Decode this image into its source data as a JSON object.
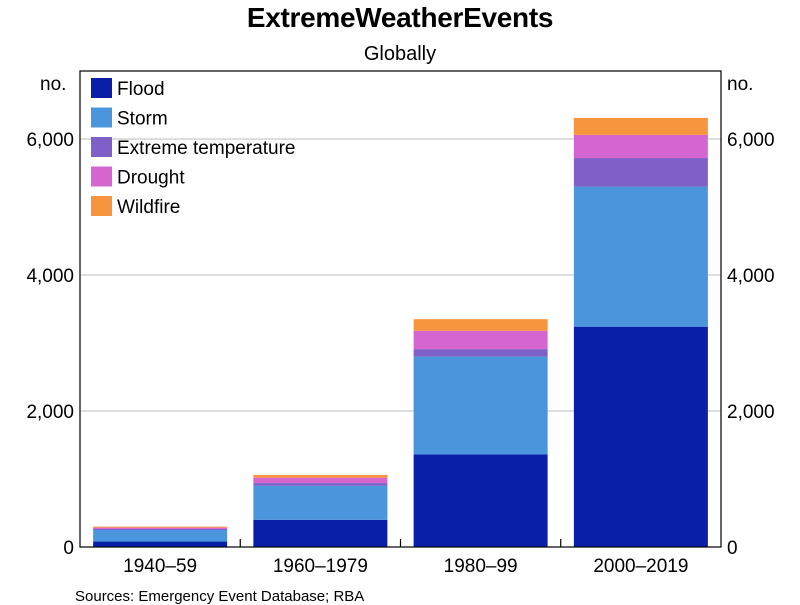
{
  "chart_data": {
    "type": "bar",
    "stacked": true,
    "title": "ExtremeWeatherEvents",
    "subtitle": "Globally",
    "ylabel_left": "no.",
    "ylabel_right": "no.",
    "ylim": [
      0,
      7000
    ],
    "yticks": [
      0,
      2000,
      4000,
      6000
    ],
    "ytick_labels": [
      "0",
      "2,000",
      "4,000",
      "6,000"
    ],
    "grid": true,
    "legend_position": "top-left",
    "categories": [
      "1940–59",
      "1960–1979",
      "1980–99",
      "2000–2019"
    ],
    "series": [
      {
        "name": "Flood",
        "color": "#0a1fa8",
        "values": [
          80,
          400,
          1360,
          3240
        ]
      },
      {
        "name": "Storm",
        "color": "#4a95dc",
        "values": [
          170,
          500,
          1440,
          2060
        ]
      },
      {
        "name": "Extreme temperature",
        "color": "#7f60c8",
        "values": [
          15,
          40,
          110,
          420
        ]
      },
      {
        "name": "Drought",
        "color": "#d566d0",
        "values": [
          20,
          80,
          270,
          340
        ]
      },
      {
        "name": "Wildfire",
        "color": "#f7953f",
        "values": [
          15,
          40,
          170,
          250
        ]
      }
    ],
    "source": "Sources: Emergency Event Database; RBA"
  }
}
